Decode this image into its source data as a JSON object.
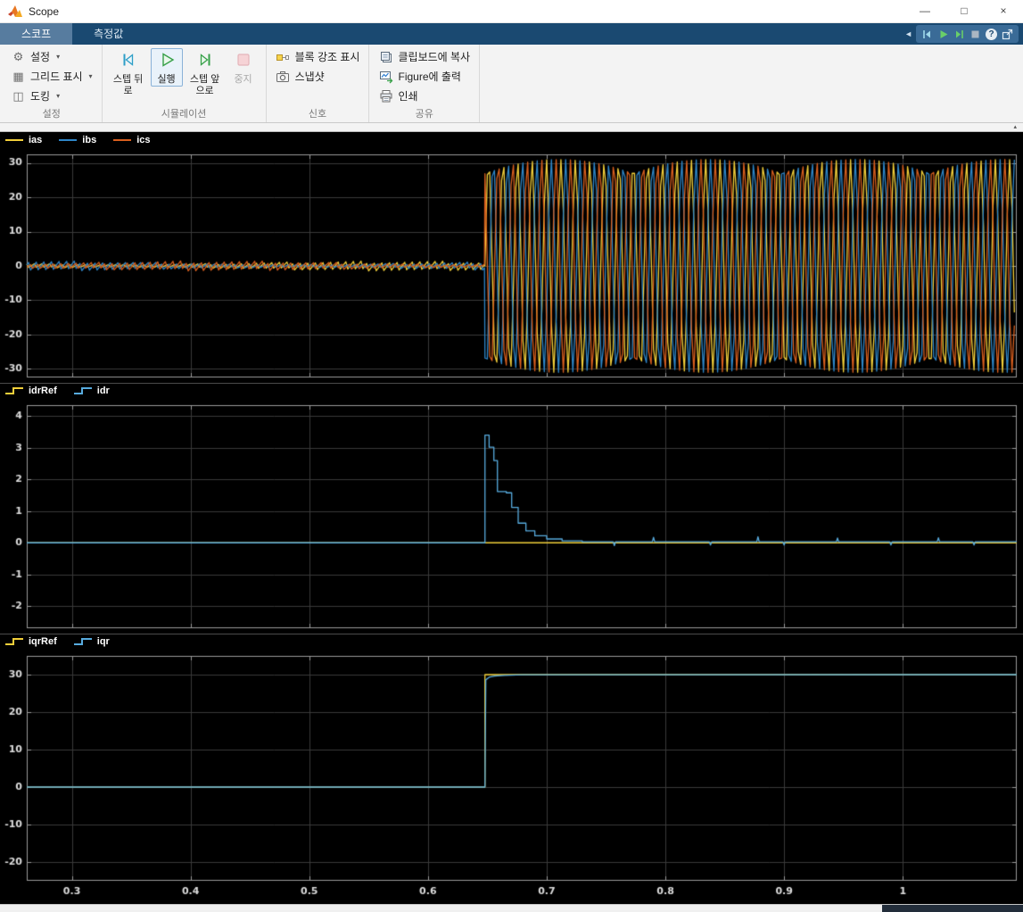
{
  "colors": {
    "yellow_line": "#F2CF3A",
    "blue_line_dark": "#2E86C8",
    "blue_line_light": "#57ABDE",
    "orange_line": "#D95F1E",
    "tab_bar": "#1A4971",
    "active_tab": "#577C9F",
    "scope_background": "#000000",
    "run_green": "#37A048",
    "stop_pink": "#F6D3D6",
    "step_teal": "#2D9EC7"
  },
  "window": {
    "title": "Scope",
    "controls": {
      "minimize": "—",
      "maximize": "□",
      "close": "×"
    }
  },
  "icons": {
    "caret_down": "▾",
    "collapse_up": "▴",
    "chevron_left": "◄",
    "gear": "⚙",
    "grid": "▦",
    "dock": "◫",
    "help": "?"
  },
  "tabs": [
    {
      "label": "스코프",
      "active": true
    },
    {
      "label": "측정값",
      "active": false
    }
  ],
  "ribbon": {
    "settings": {
      "group_label": "설정",
      "items": [
        {
          "label": "설정"
        },
        {
          "label": "그리드 표시"
        },
        {
          "label": "도킹"
        }
      ]
    },
    "simulation": {
      "group_label": "시뮬레이션",
      "items": [
        {
          "label": "스텝 뒤로"
        },
        {
          "label": "실행"
        },
        {
          "label": "스텝 앞으로"
        },
        {
          "label": "중지"
        }
      ]
    },
    "signal": {
      "group_label": "신호",
      "items": [
        {
          "label": "블록 강조 표시"
        },
        {
          "label": "스냅샷"
        }
      ]
    },
    "share": {
      "group_label": "공유",
      "items": [
        {
          "label": "클립보드에 복사"
        },
        {
          "label": "Figure에 출력"
        },
        {
          "label": "인쇄"
        }
      ]
    }
  },
  "chart_data": [
    {
      "type": "line",
      "title": "three-phase currents",
      "legend_marker": "line",
      "legend_position": "top-left",
      "grid": true,
      "xlim": [
        0.262,
        1.096
      ],
      "ylim": [
        -32.5,
        32.5
      ],
      "xticks": [
        0.3,
        0.4,
        0.5,
        0.6,
        0.7,
        0.8,
        0.9,
        1
      ],
      "xtick_labels": [
        "0.3",
        "0.4",
        "0.5",
        "0.6",
        "0.7",
        "0.8",
        "0.9",
        "1"
      ],
      "show_xtick_labels": false,
      "yticks": [
        30,
        20,
        10,
        0,
        -10,
        -20,
        -30
      ],
      "transition_time": 0.648,
      "pre": {
        "amplitude": 1.5,
        "freq": 160
      },
      "post": {
        "amplitude": 31,
        "freq": 82
      },
      "series": [
        {
          "name": "ias",
          "color": "#F2CF3A",
          "gen": {
            "kind": "threephase",
            "phase_deg": 0
          }
        },
        {
          "name": "ibs",
          "color": "#2E86C8",
          "gen": {
            "kind": "threephase",
            "phase_deg": -120
          }
        },
        {
          "name": "ics",
          "color": "#D95F1E",
          "gen": {
            "kind": "threephase",
            "phase_deg": 120
          }
        }
      ]
    },
    {
      "type": "line",
      "title": "d-axis rotor current",
      "legend_marker": "step",
      "legend_position": "top-left",
      "grid": true,
      "xlim": [
        0.262,
        1.096
      ],
      "ylim": [
        -2.7,
        4.35
      ],
      "xticks": [
        0.3,
        0.4,
        0.5,
        0.6,
        0.7,
        0.8,
        0.9,
        1
      ],
      "xtick_labels": [
        "0.3",
        "0.4",
        "0.5",
        "0.6",
        "0.7",
        "0.8",
        "0.9",
        "1"
      ],
      "show_xtick_labels": false,
      "yticks": [
        4,
        3,
        2,
        1,
        0,
        -1,
        -2
      ],
      "transition_time": 0.648,
      "series": [
        {
          "name": "idrRef",
          "color": "#F2CF3A",
          "gen": {
            "kind": "const",
            "value": 0
          }
        },
        {
          "name": "idr",
          "color": "#57ABDE",
          "gen": {
            "kind": "steps",
            "base": 0,
            "steps": [
              [
                0.648,
                3.4
              ],
              [
                0.6515,
                3.02
              ],
              [
                0.6555,
                2.6
              ],
              [
                0.6585,
                1.62
              ],
              [
                0.666,
                1.58
              ],
              [
                0.6705,
                1.12
              ],
              [
                0.676,
                0.62
              ],
              [
                0.6825,
                0.38
              ],
              [
                0.69,
                0.22
              ],
              [
                0.7,
                0.12
              ],
              [
                0.713,
                0.06
              ],
              [
                0.73,
                0.03
              ]
            ],
            "settle": 0.03,
            "spikes": [
              [
                0.757,
                -0.12
              ],
              [
                0.79,
                0.14
              ],
              [
                0.838,
                -0.1
              ],
              [
                0.878,
                0.16
              ],
              [
                0.9,
                -0.1
              ],
              [
                0.945,
                0.12
              ],
              [
                0.99,
                -0.1
              ],
              [
                1.03,
                0.13
              ],
              [
                1.06,
                -0.1
              ]
            ]
          }
        }
      ]
    },
    {
      "type": "line",
      "title": "q-axis rotor current",
      "legend_marker": "step",
      "legend_position": "top-left",
      "grid": true,
      "xlim": [
        0.262,
        1.096
      ],
      "ylim": [
        -25,
        35
      ],
      "xticks": [
        0.3,
        0.4,
        0.5,
        0.6,
        0.7,
        0.8,
        0.9,
        1
      ],
      "xtick_labels": [
        "0.3",
        "0.4",
        "0.5",
        "0.6",
        "0.7",
        "0.8",
        "0.9",
        "1"
      ],
      "show_xtick_labels": true,
      "yticks": [
        30,
        20,
        10,
        0,
        -10,
        -20
      ],
      "transition_time": 0.648,
      "series": [
        {
          "name": "iqrRef",
          "color": "#F2CF3A",
          "gen": {
            "kind": "steps",
            "base": 0,
            "steps": [
              [
                0.648,
                30
              ]
            ],
            "settle": 30,
            "spikes": []
          }
        },
        {
          "name": "iqr",
          "color": "#57ABDE",
          "gen": {
            "kind": "ramp",
            "base": 0,
            "points": [
              [
                0.648,
                0
              ],
              [
                0.6487,
                28.6
              ],
              [
                0.6515,
                29.3
              ],
              [
                0.656,
                29.6
              ],
              [
                0.664,
                29.8
              ],
              [
                0.68,
                29.95
              ],
              [
                1.096,
                30
              ]
            ]
          }
        }
      ]
    }
  ]
}
